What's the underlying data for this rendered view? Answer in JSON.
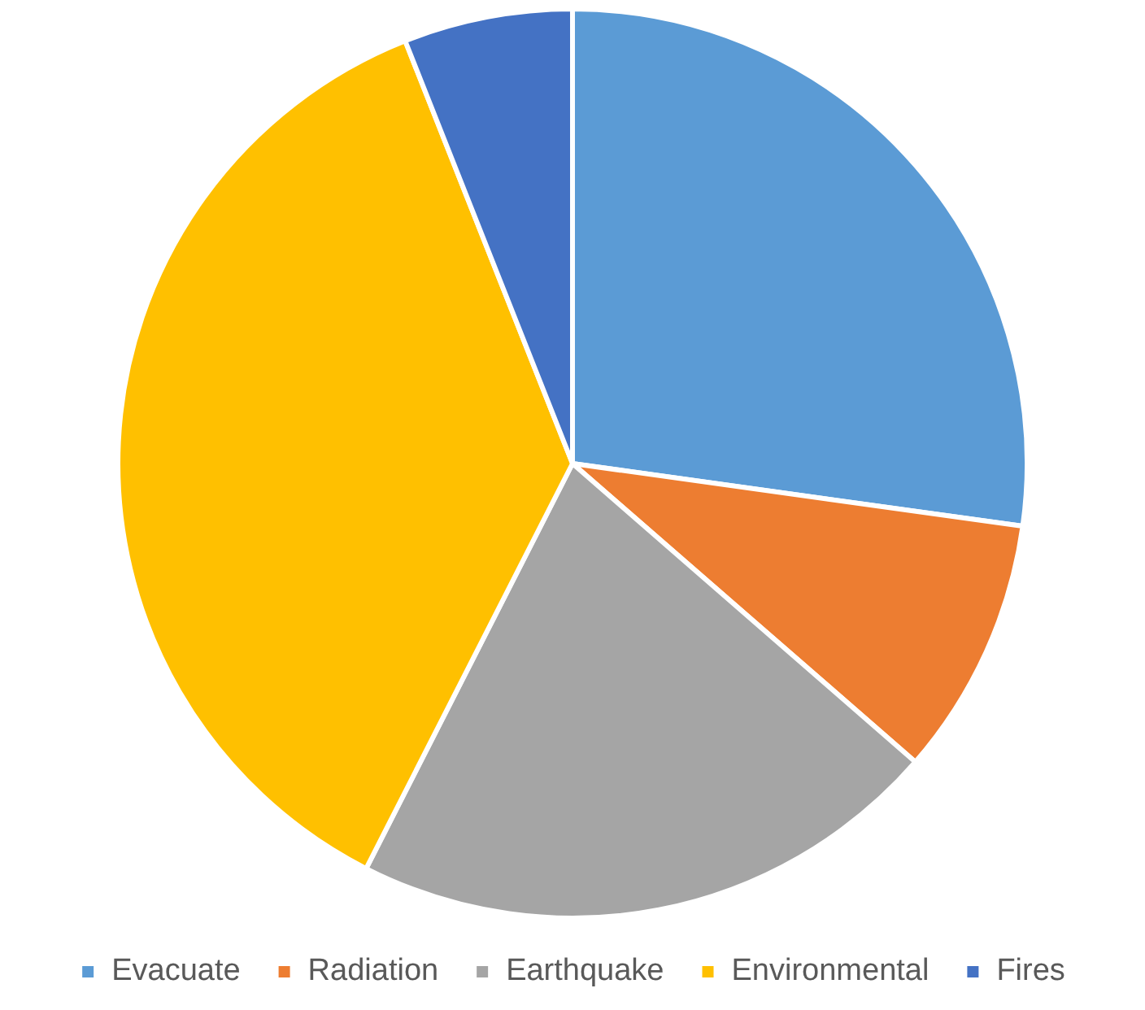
{
  "chart_data": {
    "type": "pie",
    "categories": [
      "Evacuate",
      "Radiation",
      "Earthquake",
      "Environmental",
      "Fires"
    ],
    "values": [
      27.2,
      9.2,
      21.1,
      36.5,
      6.0
    ],
    "colors": [
      "#5b9bd5",
      "#ed7d31",
      "#a5a5a5",
      "#ffc000",
      "#4472c4"
    ],
    "legend": "bottom"
  }
}
